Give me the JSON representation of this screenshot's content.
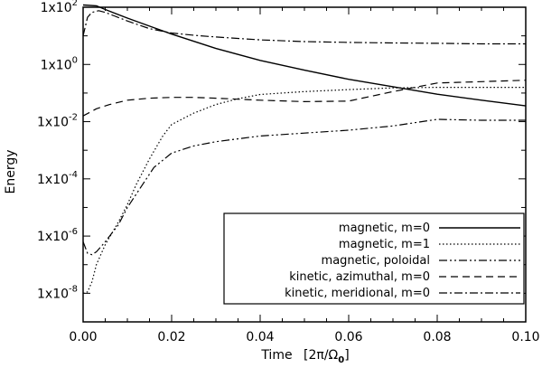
{
  "chart_data": {
    "type": "line",
    "title": "",
    "xlabel_main": "Time",
    "xlabel_unit_prefix": "[2π/Ω",
    "xlabel_unit_sub": "0",
    "xlabel_unit_suffix": "]",
    "ylabel": "Energy",
    "xlim": [
      0.0,
      0.1
    ],
    "ylim_log10": [
      -9,
      2
    ],
    "y_scale": "log",
    "x_ticks": [
      {
        "value": 0.0,
        "label": "0.00"
      },
      {
        "value": 0.02,
        "label": "0.02"
      },
      {
        "value": 0.04,
        "label": "0.04"
      },
      {
        "value": 0.06,
        "label": "0.06"
      },
      {
        "value": 0.08,
        "label": "0.08"
      },
      {
        "value": 0.1,
        "label": "0.10"
      }
    ],
    "y_ticks": [
      {
        "exp": 2,
        "base": "1x10",
        "sup": "2"
      },
      {
        "exp": 0,
        "base": "1x10",
        "sup": "0"
      },
      {
        "exp": -2,
        "base": "1x10",
        "sup": "-2"
      },
      {
        "exp": -4,
        "base": "1x10",
        "sup": "-4"
      },
      {
        "exp": -6,
        "base": "1x10",
        "sup": "-6"
      },
      {
        "exp": -8,
        "base": "1x10",
        "sup": "-8"
      }
    ],
    "legend_position": "bottom-right",
    "series": [
      {
        "name": "magnetic, m=0",
        "style": "solid",
        "x": [
          0.0,
          0.003,
          0.005,
          0.01,
          0.015,
          0.02,
          0.03,
          0.04,
          0.05,
          0.06,
          0.07,
          0.08,
          0.09,
          0.1
        ],
        "log10y": [
          2.08,
          2.05,
          1.92,
          1.62,
          1.34,
          1.06,
          0.56,
          0.14,
          -0.2,
          -0.52,
          -0.78,
          -1.04,
          -1.25,
          -1.45
        ]
      },
      {
        "name": "magnetic, m=1",
        "style": "dotted",
        "x": [
          0.0,
          0.001,
          0.002,
          0.003,
          0.005,
          0.008,
          0.01,
          0.012,
          0.015,
          0.018,
          0.02,
          0.025,
          0.03,
          0.035,
          0.04,
          0.05,
          0.06,
          0.07,
          0.08,
          0.09,
          0.1
        ],
        "log10y": [
          -8.0,
          -7.95,
          -7.6,
          -7.0,
          -6.3,
          -5.5,
          -4.9,
          -4.2,
          -3.3,
          -2.5,
          -2.1,
          -1.7,
          -1.4,
          -1.2,
          -1.05,
          -0.95,
          -0.88,
          -0.82,
          -0.8,
          -0.8,
          -0.8
        ]
      },
      {
        "name": "magnetic, poloidal",
        "style": "dash-dot-dot",
        "x": [
          0.0,
          0.001,
          0.002,
          0.003,
          0.005,
          0.008,
          0.01,
          0.013,
          0.016,
          0.02,
          0.025,
          0.03,
          0.04,
          0.05,
          0.06,
          0.07,
          0.08,
          0.09,
          0.1
        ],
        "log10y": [
          -6.2,
          -6.6,
          -6.65,
          -6.55,
          -6.2,
          -5.6,
          -5.0,
          -4.3,
          -3.6,
          -3.1,
          -2.85,
          -2.7,
          -2.5,
          -2.4,
          -2.3,
          -2.15,
          -1.92,
          -1.95,
          -1.95
        ]
      },
      {
        "name": "kinetic, azimuthal, m=0",
        "style": "dashed",
        "x": [
          0.0,
          0.003,
          0.006,
          0.01,
          0.015,
          0.02,
          0.025,
          0.03,
          0.04,
          0.05,
          0.06,
          0.07,
          0.08,
          0.09,
          0.1
        ],
        "log10y": [
          -1.8,
          -1.55,
          -1.4,
          -1.25,
          -1.18,
          -1.15,
          -1.15,
          -1.18,
          -1.25,
          -1.3,
          -1.28,
          -0.95,
          -0.65,
          -0.6,
          -0.55
        ]
      },
      {
        "name": "kinetic, meridional, m=0",
        "style": "dash-dot",
        "x": [
          0.0,
          0.001,
          0.002,
          0.0035,
          0.005,
          0.007,
          0.01,
          0.015,
          0.02,
          0.025,
          0.03,
          0.04,
          0.05,
          0.06,
          0.07,
          0.08,
          0.09,
          0.1
        ],
        "log10y": [
          1.0,
          1.65,
          1.82,
          1.88,
          1.82,
          1.7,
          1.52,
          1.25,
          1.1,
          1.02,
          0.96,
          0.86,
          0.8,
          0.77,
          0.75,
          0.74,
          0.72,
          0.72
        ]
      }
    ]
  }
}
